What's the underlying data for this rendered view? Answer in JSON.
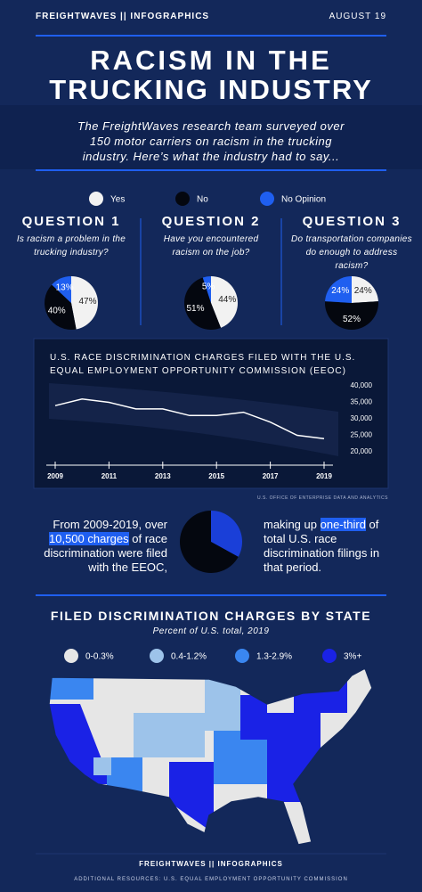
{
  "header": {
    "brand": "FREIGHTWAVES || INFOGRAPHICS",
    "date": "AUGUST 19"
  },
  "title": [
    "RACISM IN THE",
    "TRUCKING INDUSTRY"
  ],
  "intro": "The FreightWaves research team surveyed over 150 motor carriers on racism in the trucking industry. Here’s what the industry had to say...",
  "survey_legend": [
    {
      "name": "Yes",
      "color": "#f2f2f2"
    },
    {
      "name": "No",
      "color": "#04070f"
    },
    {
      "name": "No Opinion",
      "color": "#1f5ff0"
    }
  ],
  "chart_data": [
    {
      "type": "pie",
      "title": "QUESTION 1",
      "subtitle": "Is racism a problem in the trucking industry?",
      "values": [
        47,
        40,
        13
      ],
      "value_labels": [
        "47%",
        "40%",
        "13%"
      ]
    },
    {
      "type": "pie",
      "title": "QUESTION 2",
      "subtitle": "Have you encountered racism on the job?",
      "values": [
        44,
        51,
        5
      ],
      "value_labels": [
        "44%",
        "51%",
        "5%"
      ]
    },
    {
      "type": "pie",
      "title": "QUESTION 3",
      "subtitle": "Do transportation companies do enough to address racism?",
      "values": [
        24,
        52,
        24
      ],
      "value_labels": [
        "24%",
        "52%",
        "24%"
      ]
    },
    {
      "type": "line",
      "title": "U.S. RACE DISCRIMINATION CHARGES FILED WITH THE U.S. EQUAL EMPLOYMENT OPPORTUNITY COMMISSION (EEOC)",
      "source": "U.S. OFFICE OF ENTERPRISE DATA AND ANALYTICS",
      "color": "#ffffff",
      "x": [
        2009,
        2010,
        2011,
        2012,
        2013,
        2014,
        2015,
        2016,
        2017,
        2018,
        2019
      ],
      "values": [
        34000,
        36000,
        35000,
        33000,
        33000,
        31000,
        31000,
        32000,
        29000,
        25000,
        24000
      ],
      "xlim": [
        2009,
        2019
      ],
      "xticks": [
        2009,
        2011,
        2013,
        2015,
        2017,
        2019
      ],
      "ylim": [
        20000,
        40000
      ],
      "yticks": [
        {
          "value": 20000,
          "label": "20,000"
        },
        {
          "value": 25000,
          "label": "25,000"
        },
        {
          "value": 30000,
          "label": "30,000"
        },
        {
          "value": 35000,
          "label": "35,000"
        },
        {
          "value": 40000,
          "label": "40,000"
        }
      ]
    },
    {
      "type": "pie",
      "values": [
        33,
        67
      ],
      "colors": [
        "#1a3fd8",
        "#04070f"
      ]
    }
  ],
  "stat": {
    "left": [
      "From 2009-2019, over",
      "10,500 charges",
      "of race discrimination were filed with the EEOC,"
    ],
    "right": [
      "making up",
      "one-third",
      "of total U.S. race discrimination filings in that period."
    ]
  },
  "map": {
    "title": "FILED DISCRIMINATION CHARGES BY STATE",
    "subtitle": "Percent of U.S. total, 2019",
    "legend": [
      {
        "name": "0-0.3%",
        "color": "#e6e6e6"
      },
      {
        "name": "0.4-1.2%",
        "color": "#9dc3ea"
      },
      {
        "name": "1.3-2.9%",
        "color": "#3a86f0"
      },
      {
        "name": "3%+",
        "color": "#1a22e6"
      }
    ]
  },
  "footer": {
    "brand": "FREIGHTWAVES || INFOGRAPHICS",
    "resources": "ADDITIONAL RESOURCES: U.S. EQUAL EMPLOYMENT OPPORTUNITY COMMISSION"
  }
}
